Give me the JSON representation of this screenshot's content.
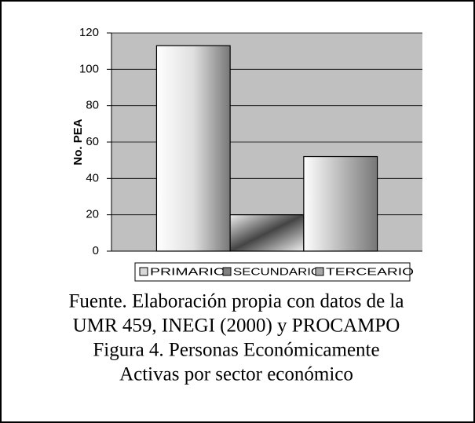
{
  "chart_data": {
    "type": "bar",
    "y_label": "No. PEA",
    "categories": [
      null
    ],
    "series": [
      {
        "name": "PRIMARIO",
        "color": "#d9d9d9",
        "values": [
          113
        ]
      },
      {
        "name": "SECUNDARIO",
        "color": "#808080",
        "values": [
          20
        ]
      },
      {
        "name": "TERCEARIO",
        "color": "#a6a6a6",
        "values": [
          52
        ]
      }
    ],
    "ylim": [
      0,
      120
    ],
    "yticks": [
      0,
      20,
      40,
      60,
      80,
      100,
      120
    ],
    "grid": true,
    "legend": "bottom",
    "caption": [
      "Fuente. Elaboración propia con datos de la",
      "UMR 459, INEGI (2000) y PROCAMPO",
      "Figura 4. Personas Económicamente",
      "Activas por sector económico"
    ]
  }
}
